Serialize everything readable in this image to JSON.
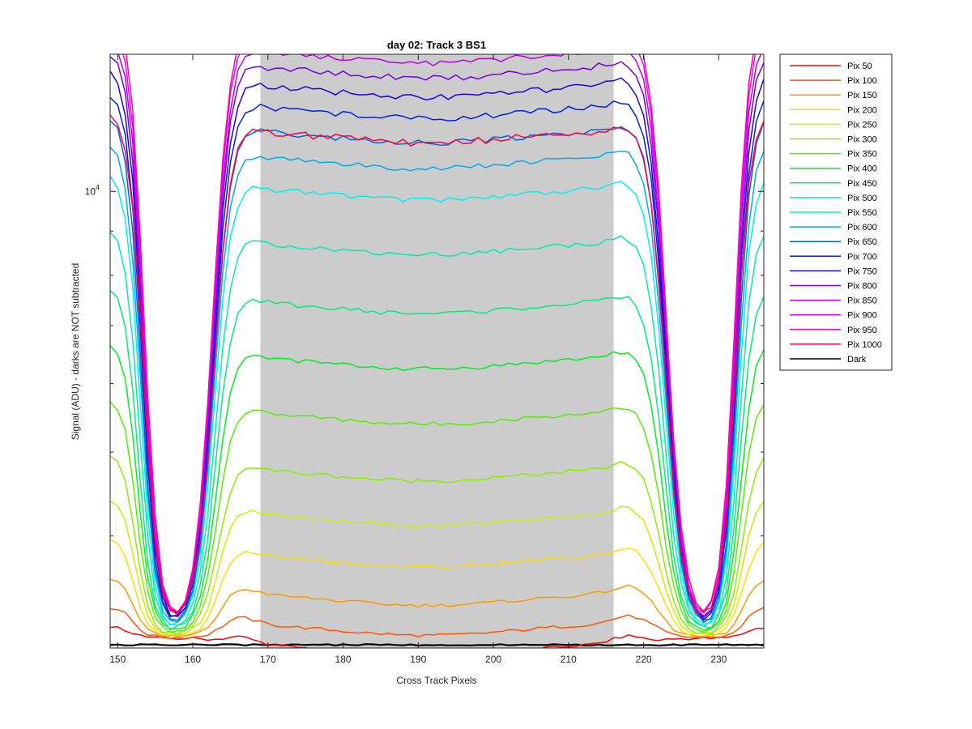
{
  "chart_data": {
    "type": "line",
    "title": "day 02: Track 3  BS1",
    "xlabel": "Cross Track Pixels",
    "ylabel": "Signal (ADU) - darks are NOT subtracted",
    "xlim": [
      149,
      236
    ],
    "ylim": [
      2970,
      14400
    ],
    "yscale": "log",
    "x_ticks": [
      150,
      160,
      170,
      180,
      190,
      200,
      210,
      220,
      230
    ],
    "y_tick_label": {
      "base": "10",
      "exponent": "4",
      "value": 10000
    },
    "shaded_region": {
      "x_start": 169,
      "x_end": 216,
      "color": "#cccccc"
    },
    "grid": false,
    "legend_position": "outside-top-right",
    "series": [
      {
        "name": "Pix 50",
        "color": "#ff0000",
        "plateau": 3080
      },
      {
        "name": "Pix 100",
        "color": "#ff5500",
        "plateau": 3250
      },
      {
        "name": "Pix 150",
        "color": "#ff9900",
        "plateau": 3520
      },
      {
        "name": "Pix 200",
        "color": "#ffdd00",
        "plateau": 3900
      },
      {
        "name": "Pix 250",
        "color": "#ccee00",
        "plateau": 4350
      },
      {
        "name": "Pix 300",
        "color": "#88ee00",
        "plateau": 4900
      },
      {
        "name": "Pix 350",
        "color": "#55ee00",
        "plateau": 5700
      },
      {
        "name": "Pix 400",
        "color": "#00ee22",
        "plateau": 6600
      },
      {
        "name": "Pix 450",
        "color": "#00ee77",
        "plateau": 7650
      },
      {
        "name": "Pix 500",
        "color": "#00eeaa",
        "plateau": 8950
      },
      {
        "name": "Pix 550",
        "color": "#00eeee",
        "plateau": 10350
      },
      {
        "name": "Pix 600",
        "color": "#00aaee",
        "plateau": 11250
      },
      {
        "name": "Pix 650",
        "color": "#0066dd",
        "plateau": 12050
      },
      {
        "name": "Pix 700",
        "color": "#0022dd",
        "plateau": 12850
      },
      {
        "name": "Pix 750",
        "color": "#2200dd",
        "plateau": 13600
      },
      {
        "name": "Pix 800",
        "color": "#7700dd",
        "plateau": 14300
      },
      {
        "name": "Pix 850",
        "color": "#bb00ee",
        "plateau": 14900
      },
      {
        "name": "Pix 900",
        "color": "#ee00ee",
        "plateau": 15500
      },
      {
        "name": "Pix 950",
        "color": "#ff00aa",
        "plateau": 16050
      },
      {
        "name": "Pix 1000",
        "color": "#ff0044",
        "plateau": 12050
      }
    ],
    "dark": {
      "name": "Dark",
      "color": "#000000",
      "level": 2995
    }
  }
}
